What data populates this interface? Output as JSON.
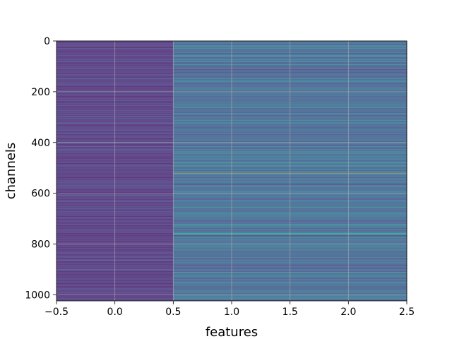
{
  "chart_data": {
    "type": "heatmap",
    "title": "",
    "xlabel": "features",
    "ylabel": "channels",
    "colormap": "viridis",
    "columns": 3,
    "rows": 1024,
    "xlim": [
      -0.5,
      2.5
    ],
    "ylim": [
      1024,
      0
    ],
    "x_ticks": [
      -0.5,
      0.0,
      0.5,
      1.0,
      1.5,
      2.0,
      2.5
    ],
    "x_tick_labels": [
      "−0.5",
      "0.0",
      "0.5",
      "1.0",
      "1.5",
      "2.0",
      "2.5"
    ],
    "y_ticks": [
      0,
      200,
      400,
      600,
      800,
      1000
    ],
    "y_tick_labels": [
      "0",
      "200",
      "400",
      "600",
      "800",
      "1000"
    ],
    "grid": true,
    "column_0": {
      "description_value_range": [
        0.05,
        0.25
      ],
      "typical_value": 0.12
    },
    "columns_1_2": {
      "typical_value": 0.3,
      "value_range": [
        0.1,
        0.55
      ]
    },
    "highlight_bands": [
      {
        "channel": 522,
        "value": 1.0
      },
      {
        "channel": 440,
        "value": 0.55
      },
      {
        "channel": 498,
        "value": 0.5
      },
      {
        "channel": 484,
        "value": 0.45
      },
      {
        "channel": 754,
        "value": 0.5
      },
      {
        "channel": 958,
        "value": 0.5
      },
      {
        "channel": 160,
        "value": 0.4
      },
      {
        "channel": 575,
        "value": 0.45
      }
    ]
  },
  "colors": {
    "background": "#ffffff",
    "grid": "#b0b0b0",
    "axis": "#000000"
  }
}
